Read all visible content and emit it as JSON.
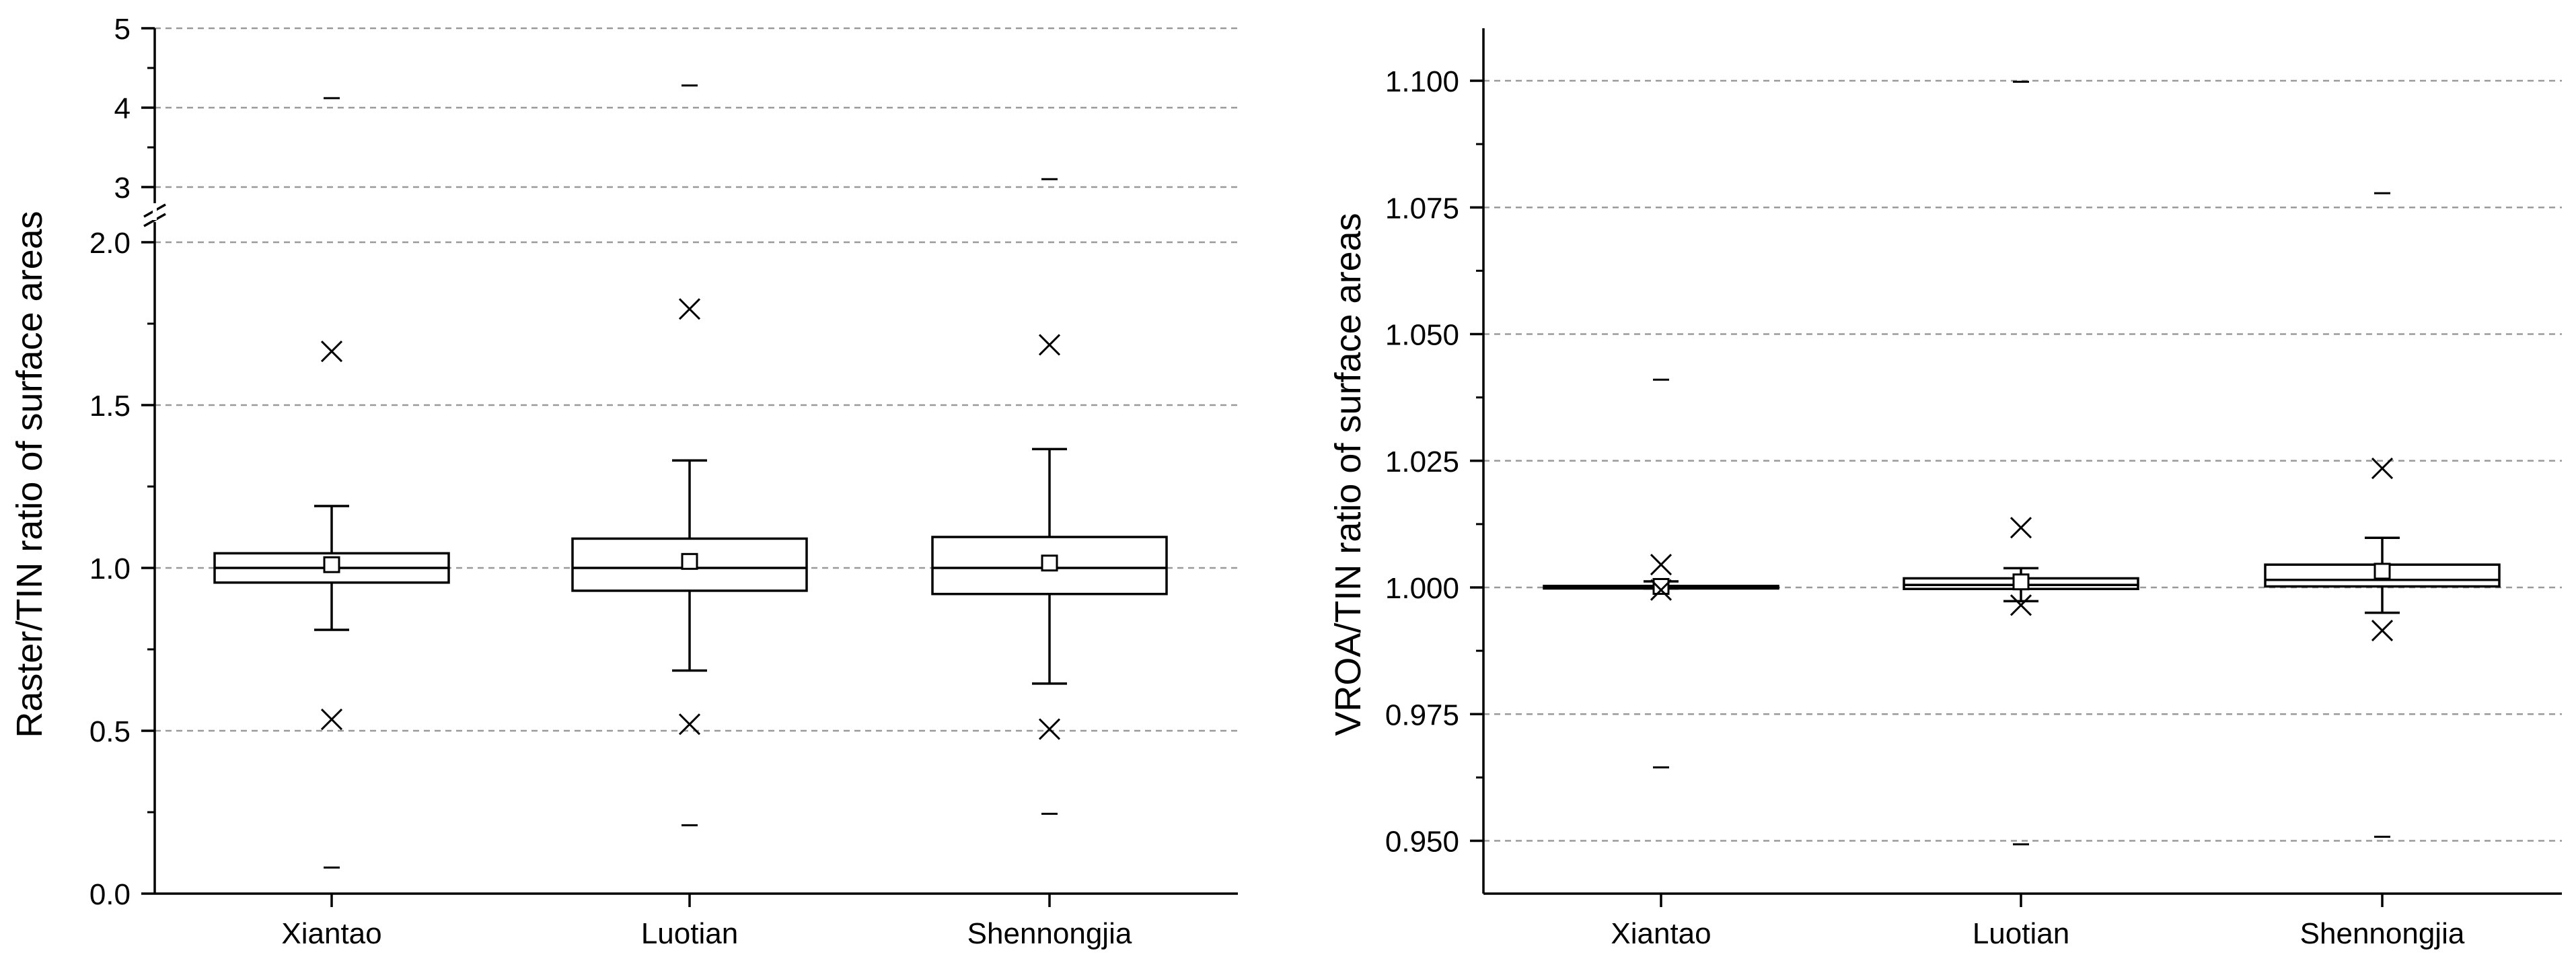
{
  "chart_data": [
    {
      "type": "box",
      "ylabel": "Raster/TIN ratio of surface areas",
      "categories": [
        "Xiantao",
        "Luotian",
        "Shennongjia"
      ],
      "y_axis_break": {
        "between": [
          2.0,
          3.0
        ]
      },
      "ylim_lower": [
        0.0,
        2.0
      ],
      "ylim_upper": [
        3.0,
        5.0
      ],
      "yticks": [
        0.0,
        0.5,
        1.0,
        1.5,
        2.0,
        3,
        4,
        5
      ],
      "ytick_labels": [
        "0.0",
        "0.5",
        "1.0",
        "1.5",
        "2.0",
        "3",
        "4",
        "5"
      ],
      "grid": true,
      "boxes": [
        {
          "category": "Xiantao",
          "whisker_low": 0.81,
          "q1": 0.955,
          "median": 1.0,
          "mean": 1.01,
          "q3": 1.045,
          "whisker_high": 1.19,
          "p1": 0.535,
          "p99": 1.665,
          "min": 0.08,
          "max": 4.12
        },
        {
          "category": "Luotian",
          "whisker_low": 0.685,
          "q1": 0.93,
          "median": 1.0,
          "mean": 1.02,
          "q3": 1.09,
          "whisker_high": 1.33,
          "p1": 0.52,
          "p99": 1.795,
          "min": 0.21,
          "max": 4.28
        },
        {
          "category": "Shennongjia",
          "whisker_low": 0.645,
          "q1": 0.92,
          "median": 1.0,
          "mean": 1.015,
          "q3": 1.095,
          "whisker_high": 1.365,
          "p1": 0.505,
          "p99": 1.685,
          "min": 0.245,
          "max": 3.1
        }
      ]
    },
    {
      "type": "box",
      "ylabel": "VROA/TIN ratio of surface areas",
      "categories": [
        "Xiantao",
        "Luotian",
        "Shennongjia"
      ],
      "ylim": [
        0.94,
        1.11
      ],
      "yticks": [
        0.95,
        0.975,
        1.0,
        1.025,
        1.05,
        1.075,
        1.1
      ],
      "ytick_labels": [
        "0.950",
        "0.975",
        "1.000",
        "1.025",
        "1.050",
        "1.075",
        "1.100"
      ],
      "grid": true,
      "boxes": [
        {
          "category": "Xiantao",
          "whisker_low": 0.9998,
          "q1": 0.9998,
          "median": 1.0,
          "mean": 1.0002,
          "q3": 1.0003,
          "whisker_high": 1.0012,
          "p1": 0.9995,
          "p99": 1.0045,
          "min": 0.9645,
          "max": 1.041
        },
        {
          "category": "Luotian",
          "whisker_low": 0.9973,
          "q1": 0.9997,
          "median": 1.0005,
          "mean": 1.0011,
          "q3": 1.0018,
          "whisker_high": 1.0038,
          "p1": 0.9965,
          "p99": 1.0118,
          "min": 0.9493,
          "max": 1.0998
        },
        {
          "category": "Shennongjia",
          "whisker_low": 0.995,
          "q1": 1.0002,
          "median": 1.0015,
          "mean": 1.0032,
          "q3": 1.0045,
          "whisker_high": 1.0098,
          "p1": 0.9915,
          "p99": 1.0235,
          "min": 0.9508,
          "max": 1.0778
        }
      ]
    }
  ]
}
